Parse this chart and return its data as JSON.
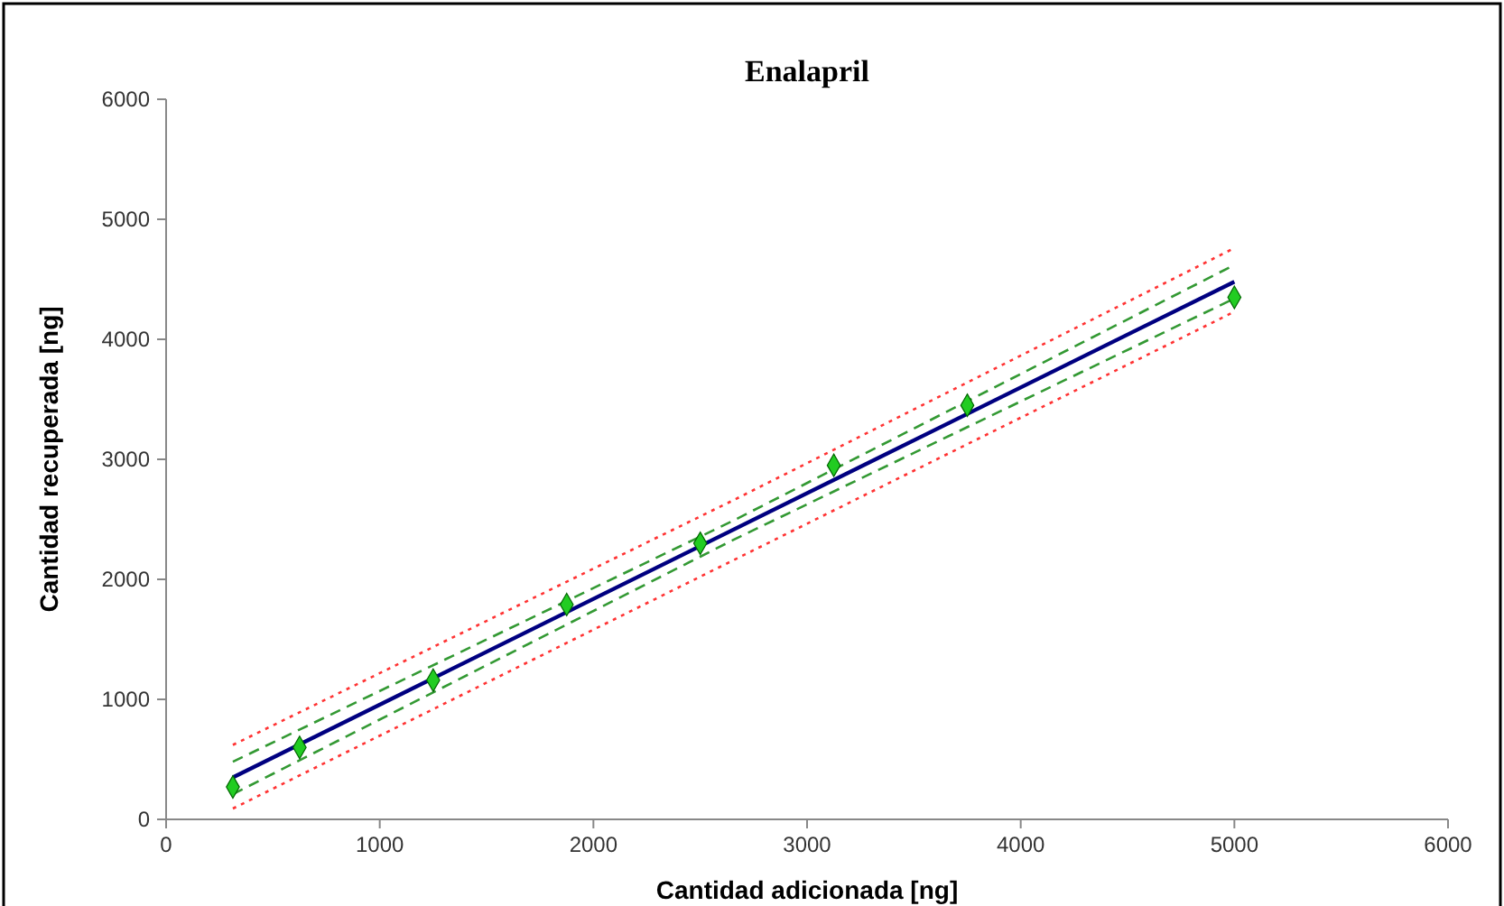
{
  "chart_data": {
    "type": "scatter",
    "title": "Enalapril",
    "xlabel": "Cantidad adicionada [ng]",
    "ylabel": "Cantidad recuperada [ng]",
    "xlim": [
      0,
      6000
    ],
    "xticks": [
      0,
      1000,
      2000,
      3000,
      4000,
      5000,
      6000
    ],
    "ylim": [
      0,
      6000
    ],
    "yticks": [
      0,
      1000,
      2000,
      3000,
      4000,
      5000,
      6000
    ],
    "grid": false,
    "series": [
      {
        "type": "line",
        "color": "#ff3333",
        "line_style": "dotted",
        "x": [
          312.5,
          2656,
          5000
        ],
        "values": [
          620,
          2660,
          4760
        ]
      },
      {
        "type": "line",
        "color": "#ff3333",
        "line_style": "dotted",
        "x": [
          312.5,
          2656,
          5000
        ],
        "values": [
          90,
          2160,
          4230
        ]
      },
      {
        "type": "line",
        "color": "#339933",
        "line_style": "dashed",
        "x": [
          312.5,
          2656,
          5000
        ],
        "values": [
          480,
          2490,
          4620
        ]
      },
      {
        "type": "line",
        "color": "#339933",
        "line_style": "dashed",
        "x": [
          312.5,
          2656,
          5000
        ],
        "values": [
          210,
          2330,
          4340
        ]
      },
      {
        "type": "line",
        "color": "#000080",
        "line_style": "solid",
        "x": [
          312.5,
          5000
        ],
        "values": [
          350,
          4480
        ]
      },
      {
        "color": "#22cc22",
        "marker": "diamond",
        "x": [
          312.5,
          625,
          1250,
          1875,
          2500,
          3125,
          3750,
          5000
        ],
        "values": [
          270,
          600,
          1160,
          1790,
          2300,
          2950,
          3450,
          4350
        ]
      }
    ]
  }
}
